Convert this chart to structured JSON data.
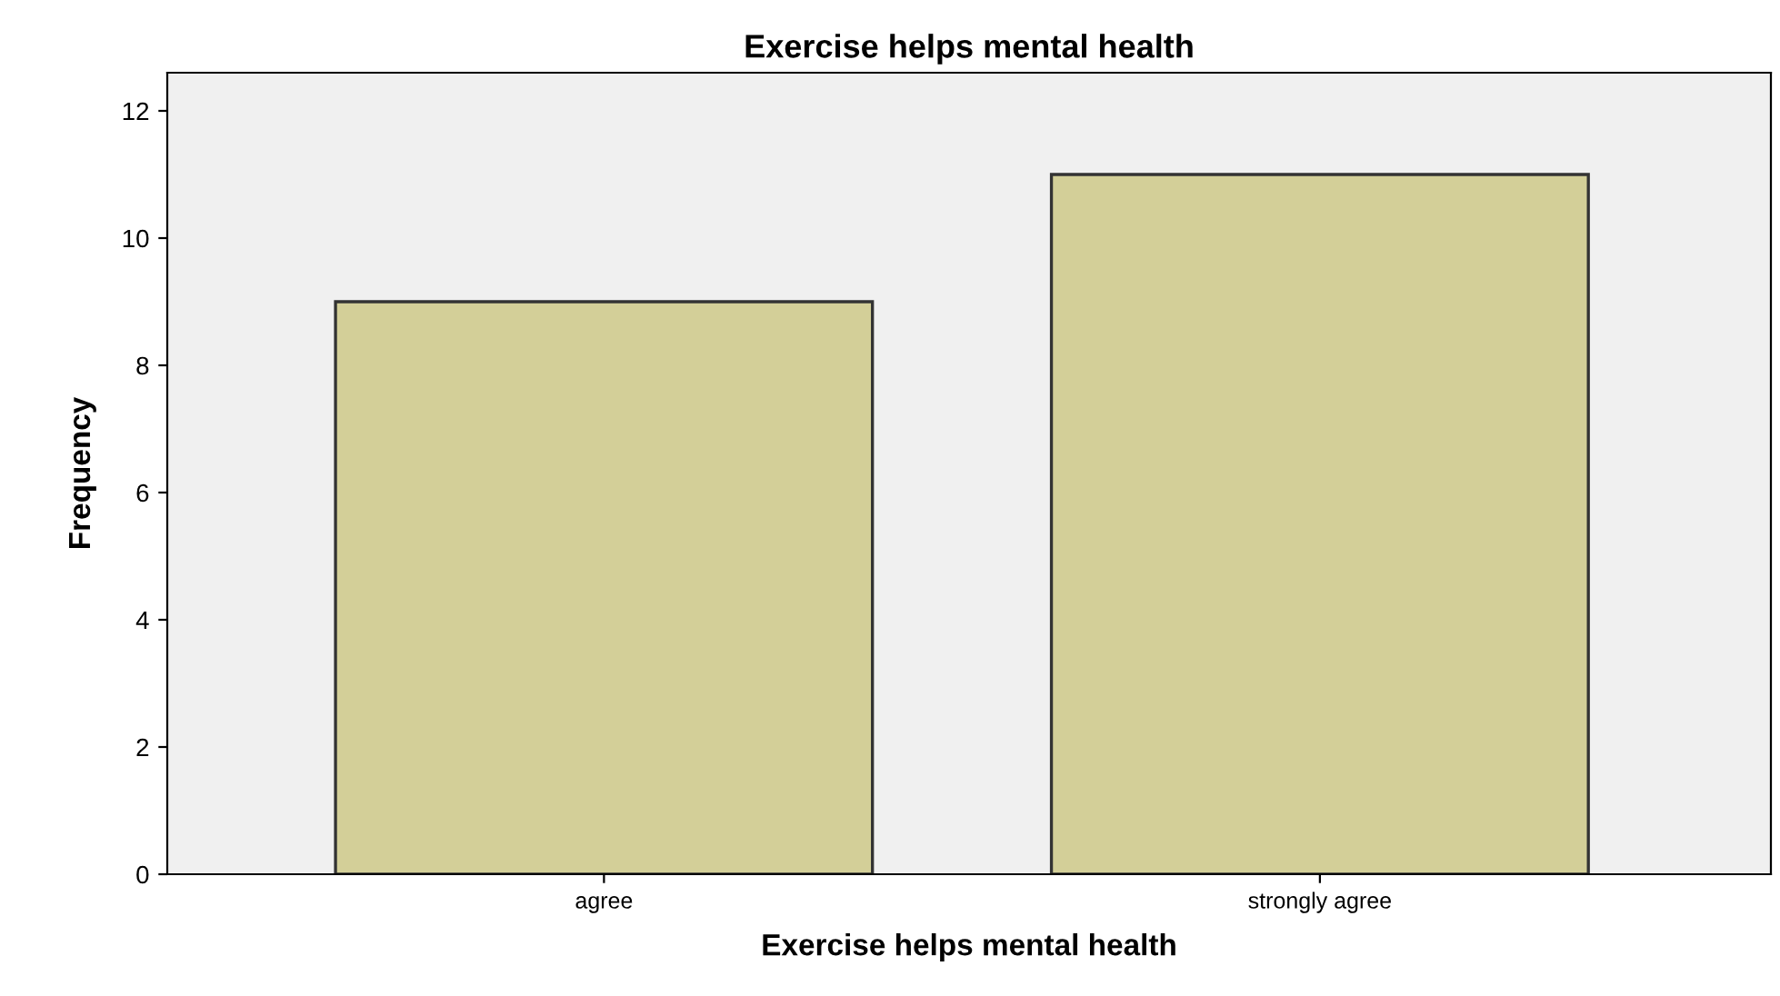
{
  "chart_data": {
    "type": "bar",
    "title": "Exercise helps mental health",
    "xlabel": "Exercise helps mental health",
    "ylabel": "Frequency",
    "categories": [
      "agree",
      "strongly agree"
    ],
    "series": [
      {
        "color": "#d3cf98",
        "values": [
          9,
          11
        ]
      }
    ],
    "ylim": [
      0,
      12.6
    ],
    "yticks": [
      0,
      2,
      4,
      6,
      8,
      10,
      12
    ],
    "grid": false,
    "legend": false
  }
}
